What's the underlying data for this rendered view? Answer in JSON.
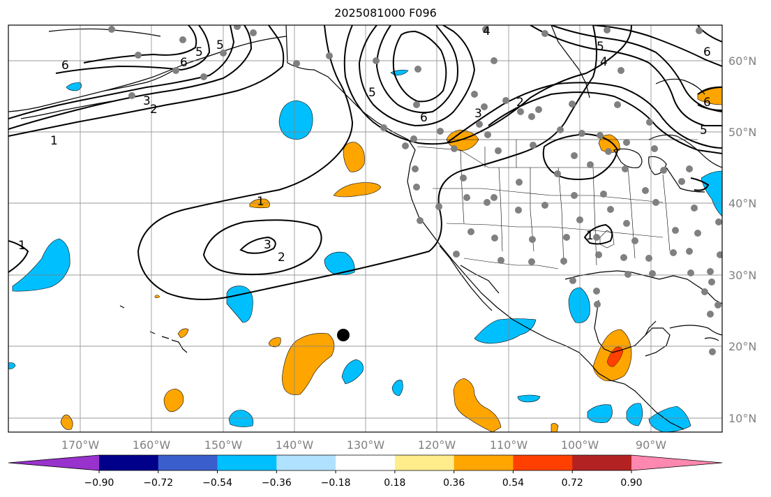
{
  "title": "2025081000 F096",
  "map": {
    "lon_labels": [
      "170°W",
      "160°W",
      "150°W",
      "140°W",
      "130°W",
      "120°W",
      "110°W",
      "100°W",
      "90°W"
    ],
    "lat_labels": [
      "60°N",
      "50°N",
      "40°N",
      "30°N",
      "20°N",
      "10°N"
    ],
    "contour_labels": [
      "6",
      "5",
      "3",
      "2",
      "1",
      "1",
      "1",
      "3",
      "2",
      "4",
      "5",
      "6",
      "2",
      "3",
      "6",
      "5",
      "4",
      "5",
      "6",
      "6",
      "5",
      "1"
    ],
    "colors": {
      "land_outline": "#000000",
      "gridline": "#808080",
      "station_marker": "#808080",
      "positive_fill": "#ffa500",
      "strong_positive_fill": "#ff4000",
      "negative_fill": "#00bfff",
      "storm_marker": "#000000"
    }
  },
  "colorbar": {
    "tick_labels": [
      "−0.90",
      "−0.72",
      "−0.54",
      "−0.36",
      "−0.18",
      "0.18",
      "0.36",
      "0.54",
      "0.72",
      "0.90"
    ],
    "bins": [
      {
        "color": "#9932cc"
      },
      {
        "color": "#00008b"
      },
      {
        "color": "#3a5fcd"
      },
      {
        "color": "#00bfff"
      },
      {
        "color": "#b0e2ff"
      },
      {
        "color": "#ffffff"
      },
      {
        "color": "#ffec8b"
      },
      {
        "color": "#ffa500"
      },
      {
        "color": "#ff4000"
      },
      {
        "color": "#b22222"
      },
      {
        "color": "#ff88b0"
      }
    ]
  }
}
